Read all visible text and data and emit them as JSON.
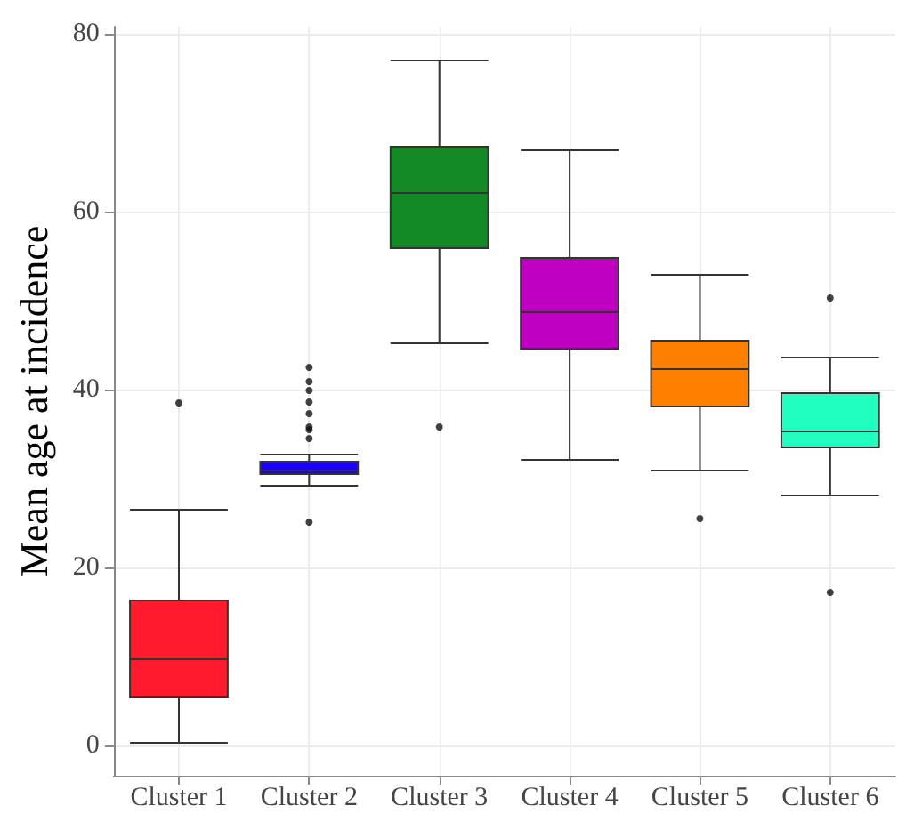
{
  "chart_data": {
    "type": "box",
    "ylabel": "Mean age at incidence",
    "categories": [
      "Cluster 1",
      "Cluster 2",
      "Cluster 3",
      "Cluster 4",
      "Cluster 5",
      "Cluster 6"
    ],
    "colors": [
      "#ff1a2e",
      "#1a00ff",
      "#138a26",
      "#c000c0",
      "#ff8000",
      "#20ffc0"
    ],
    "boxes": [
      {
        "low": 0.3,
        "q1": 5.4,
        "median": 9.7,
        "q3": 16.3,
        "high": 26.5,
        "outliers": [
          38.5
        ]
      },
      {
        "low": 29.2,
        "q1": 30.5,
        "median": 30.9,
        "q3": 31.9,
        "high": 32.7,
        "outliers": [
          42.5,
          40.9,
          39.9,
          38.6,
          37.3,
          35.8,
          35.5,
          34.5,
          25.1
        ]
      },
      {
        "low": 45.2,
        "q1": 55.9,
        "median": 62.1,
        "q3": 67.3,
        "high": 77,
        "outliers": [
          35.8
        ]
      },
      {
        "low": 32.1,
        "q1": 44.6,
        "median": 48.7,
        "q3": 54.8,
        "high": 66.9
      },
      {
        "low": 30.9,
        "q1": 38.1,
        "median": 42.3,
        "q3": 45.5,
        "high": 52.9,
        "outliers": [
          25.5
        ]
      },
      {
        "low": 28.1,
        "q1": 33.5,
        "median": 35.3,
        "q3": 39.6,
        "high": 43.6,
        "outliers": [
          50.3,
          17.2
        ]
      }
    ],
    "ylim": [
      -3.4,
      80.8
    ],
    "yticks": [
      0,
      20,
      40,
      60,
      80
    ],
    "grid": true
  }
}
